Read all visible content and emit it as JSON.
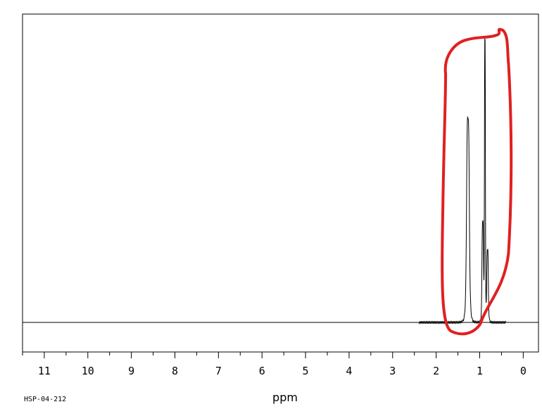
{
  "sample_id": "HSP-04-212",
  "chart_data": {
    "type": "line",
    "title": "",
    "xlabel": "ppm",
    "ylabel": "",
    "xlim": [
      11.5,
      -0.35
    ],
    "x_reversed": true,
    "x_ticks": [
      11,
      10,
      9,
      8,
      7,
      6,
      5,
      4,
      3,
      2,
      1,
      0
    ],
    "x_tick_labels": [
      "11",
      "10",
      "9",
      "8",
      "7",
      "6",
      "5",
      "4",
      "3",
      "2",
      "1",
      "0"
    ],
    "x_minor_tick_step": 0.5,
    "grid": false,
    "legend": "none",
    "line_color": "#000000",
    "highlight_color": "#e02020",
    "peaks": [
      {
        "ppm": 1.27,
        "height": 0.73
      },
      {
        "ppm": 0.88,
        "height": 1.0
      },
      {
        "ppm": 0.93,
        "height": 0.36
      },
      {
        "ppm": 0.82,
        "height": 0.26
      }
    ],
    "y_range": [
      0,
      1.0
    ],
    "annotation": {
      "type": "freehand-outline",
      "ppm_range": [
        1.75,
        0.5
      ],
      "description": ""
    }
  }
}
